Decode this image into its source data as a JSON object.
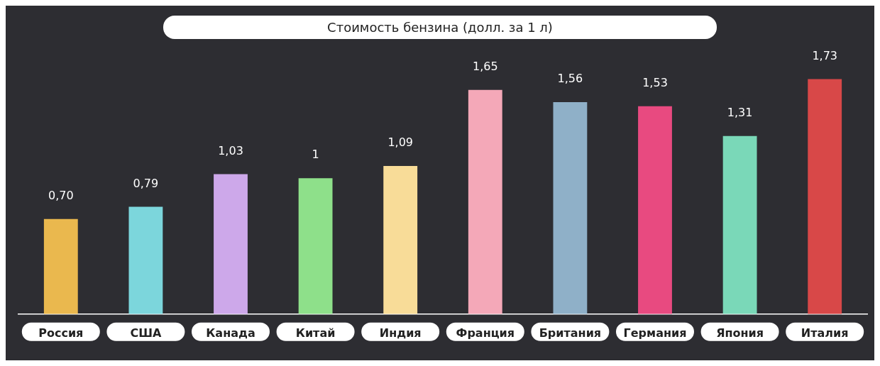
{
  "chart_data": {
    "type": "bar",
    "title": "Стоимость бензина (долл. за 1 л)",
    "categories": [
      "Россия",
      "США",
      "Канада",
      "Китай",
      "Индия",
      "Франция",
      "Британия",
      "Германия",
      "Япония",
      "Италия"
    ],
    "values": [
      0.7,
      0.79,
      1.03,
      1,
      1.09,
      1.65,
      1.56,
      1.53,
      1.31,
      1.73
    ],
    "value_labels": [
      "0,70",
      "0,79",
      "1,03",
      "1",
      "1,09",
      "1,65",
      "1,56",
      "1,53",
      "1,31",
      "1,73"
    ],
    "colors": [
      "#eab84e",
      "#7cd6dc",
      "#cda8ea",
      "#8ee08a",
      "#f8dc98",
      "#f4a8b8",
      "#8fb0c8",
      "#e84a80",
      "#7ad8b8",
      "#d84848"
    ],
    "grid": false,
    "legend": false
  }
}
